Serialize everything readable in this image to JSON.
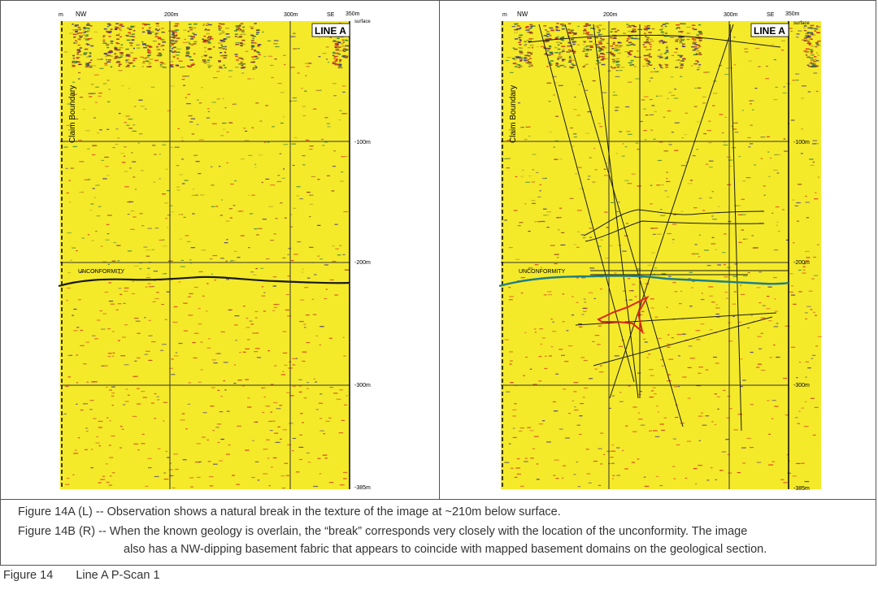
{
  "panels": [
    {
      "id": "left",
      "line_label": "LINE A",
      "nw_label": "NW",
      "se_label": "SE",
      "m_label": "m",
      "x_ticks": [
        "200m",
        "300m",
        "350m"
      ],
      "surface_label": "surface",
      "depth_labels": [
        "-100m",
        "-200m",
        "-300m",
        "-385m"
      ],
      "claim_boundary": "Claim Boundary",
      "unconformity": "UNCONFORMITY",
      "unconformity_color": "#1a1a1a",
      "overlay": false
    },
    {
      "id": "right",
      "line_label": "LINE A",
      "nw_label": "NW",
      "se_label": "SE",
      "m_label": "m",
      "x_ticks": [
        "200m",
        "300m",
        "350m"
      ],
      "surface_label": "surface",
      "depth_labels": [
        "-100m",
        "-200m",
        "-300m",
        "-385m"
      ],
      "claim_boundary": "Claim Boundary",
      "unconformity": "UNCONFORMITY",
      "unconformity_color": "#1f7f86",
      "overlay": true
    }
  ],
  "colors": {
    "background": "#f4ea2a",
    "grid": "#333333",
    "anomaly": "#e0241b"
  },
  "caption": {
    "line1": "Figure 14A (L) -- Observation shows a natural break in the texture of the image at ~210m below surface.",
    "line2": "Figure 14B (R) -- When the known geology is overlain, the “break” corresponds very closely with the location of the unconformity.  The image",
    "line3": "also has a NW-dipping basement fabric that appears to coincide with mapped basement domains on the geological section."
  },
  "figure": {
    "number": "Figure 14",
    "title": "Line A P-Scan 1"
  }
}
